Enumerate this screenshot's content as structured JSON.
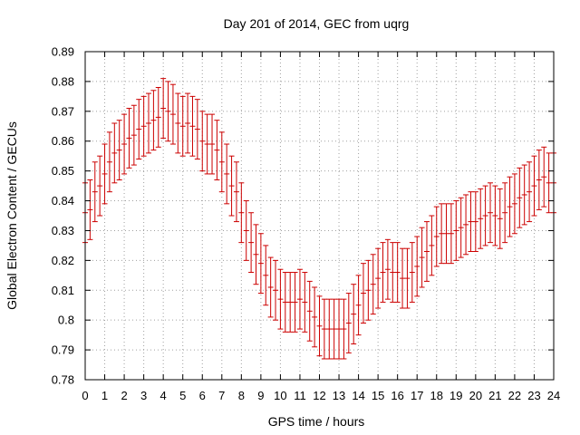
{
  "chart_data": {
    "type": "line",
    "title": "Day 201 of 2014, GEC from uqrg",
    "xlabel": "GPS time / hours",
    "ylabel": "Global Electron Content / GECUs",
    "xlim": [
      0,
      24
    ],
    "ylim": [
      0.78,
      0.89
    ],
    "xticks": [
      "0",
      "1",
      "2",
      "3",
      "4",
      "5",
      "6",
      "7",
      "8",
      "9",
      "10",
      "11",
      "12",
      "13",
      "14",
      "15",
      "16",
      "17",
      "18",
      "19",
      "20",
      "21",
      "22",
      "23",
      "24"
    ],
    "yticks": [
      "0.78",
      "0.79",
      "0.8",
      "0.81",
      "0.82",
      "0.83",
      "0.84",
      "0.85",
      "0.86",
      "0.87",
      "0.88",
      "0.89"
    ],
    "grid": true,
    "error_bars": true,
    "error_halfwidth": 0.01,
    "series_color": "#cc0000",
    "series": [
      {
        "x": [
          0,
          0.25,
          0.5,
          0.75,
          1,
          1.25,
          1.5,
          1.75,
          2,
          2.25,
          2.5,
          2.75,
          3,
          3.25,
          3.5,
          3.75,
          4,
          4.25,
          4.5,
          4.75,
          5,
          5.25,
          5.5,
          5.75,
          6,
          6.25,
          6.5,
          6.75,
          7,
          7.25,
          7.5,
          7.75,
          8,
          8.25,
          8.5,
          8.75,
          9,
          9.25,
          9.5,
          9.75,
          10,
          10.25,
          10.5,
          10.75,
          11,
          11.25,
          11.5,
          11.75,
          12,
          12.25,
          12.5,
          12.75,
          13,
          13.25,
          13.5,
          13.75,
          14,
          14.25,
          14.5,
          14.75,
          15,
          15.25,
          15.5,
          15.75,
          16,
          16.25,
          16.5,
          16.75,
          17,
          17.25,
          17.5,
          17.75,
          18,
          18.25,
          18.5,
          18.75,
          19,
          19.25,
          19.5,
          19.75,
          20,
          20.25,
          20.5,
          20.75,
          21,
          21.25,
          21.5,
          21.75,
          22,
          22.25,
          22.5,
          22.75,
          23,
          23.25,
          23.5,
          23.75,
          24
        ],
        "y": [
          0.836,
          0.837,
          0.843,
          0.845,
          0.849,
          0.853,
          0.856,
          0.857,
          0.859,
          0.861,
          0.862,
          0.864,
          0.865,
          0.866,
          0.867,
          0.868,
          0.871,
          0.87,
          0.869,
          0.866,
          0.865,
          0.866,
          0.865,
          0.864,
          0.86,
          0.859,
          0.859,
          0.857,
          0.853,
          0.849,
          0.845,
          0.843,
          0.836,
          0.83,
          0.826,
          0.822,
          0.819,
          0.815,
          0.811,
          0.81,
          0.807,
          0.806,
          0.806,
          0.806,
          0.807,
          0.806,
          0.803,
          0.801,
          0.798,
          0.797,
          0.797,
          0.797,
          0.797,
          0.797,
          0.799,
          0.802,
          0.805,
          0.809,
          0.81,
          0.812,
          0.814,
          0.816,
          0.817,
          0.816,
          0.816,
          0.814,
          0.814,
          0.816,
          0.818,
          0.821,
          0.823,
          0.825,
          0.828,
          0.829,
          0.829,
          0.829,
          0.83,
          0.831,
          0.832,
          0.833,
          0.833,
          0.834,
          0.835,
          0.836,
          0.835,
          0.834,
          0.836,
          0.838,
          0.839,
          0.841,
          0.842,
          0.843,
          0.845,
          0.847,
          0.848,
          0.846,
          0.846
        ]
      }
    ]
  }
}
